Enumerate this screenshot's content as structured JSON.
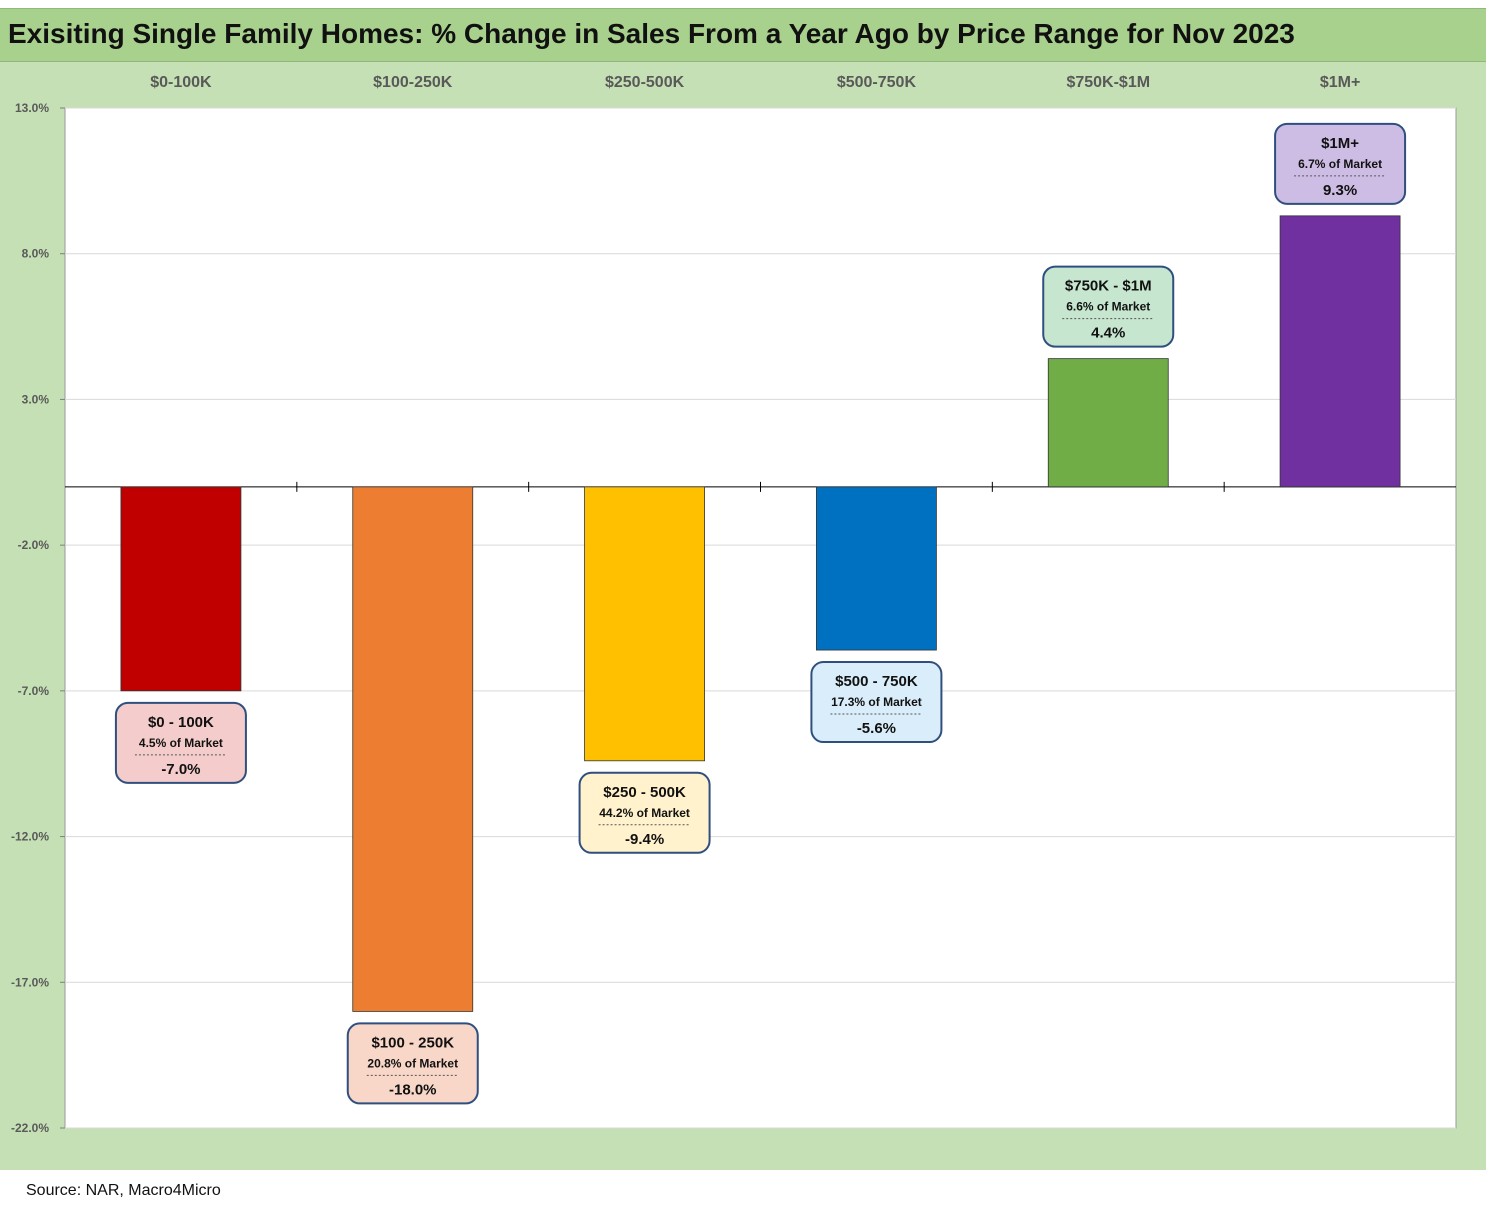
{
  "title": "Exisiting Single Family Homes: % Change in Sales From a Year Ago by Price Range for Nov 2023",
  "source": "Source: NAR, Macro4Micro",
  "colors": {
    "title_bg": "#a9d18e",
    "chart_bg": "#c5e0b4",
    "plot_bg": "#ffffff"
  },
  "chart_data": {
    "type": "bar",
    "categories": [
      "$0-100K",
      "$100-250K",
      "$250-500K",
      "$500-750K",
      "$750K-$1M",
      "$1M+"
    ],
    "values": [
      -7.0,
      -18.0,
      -9.4,
      -5.6,
      4.4,
      9.3
    ],
    "bar_colors": [
      "#c00000",
      "#ed7d31",
      "#ffc000",
      "#0070c0",
      "#70ad47",
      "#7030a0"
    ],
    "ylim": [
      -22,
      13
    ],
    "yticks": [
      13,
      8,
      3,
      -2,
      -7,
      -12,
      -17,
      -22
    ],
    "ytick_labels": [
      "13.0%",
      "8.0%",
      "3.0%",
      "-2.0%",
      "-7.0%",
      "-12.0%",
      "-17.0%",
      "-22.0%"
    ],
    "category_axis_position": "top",
    "grid": true,
    "xlabel": "",
    "ylabel": "",
    "annotations": [
      {
        "name": "$0 - 100K",
        "share": "4.5% of Market",
        "value_label": "-7.0%",
        "fill": "#f4cccc"
      },
      {
        "name": "$100 - 250K",
        "share": "20.8% of Market",
        "value_label": "-18.0%",
        "fill": "#f8d7c8"
      },
      {
        "name": "$250 - 500K",
        "share": "44.2% of Market",
        "value_label": "-9.4%",
        "fill": "#fff2cc"
      },
      {
        "name": "$500 - 750K",
        "share": "17.3% of Market",
        "value_label": "-5.6%",
        "fill": "#d9eefa"
      },
      {
        "name": "$750K - $1M",
        "share": "6.6% of Market",
        "value_label": "4.4%",
        "fill": "#c6e6cf"
      },
      {
        "name": "$1M+",
        "share": "6.7% of Market",
        "value_label": "9.3%",
        "fill": "#cdbde4"
      }
    ]
  }
}
